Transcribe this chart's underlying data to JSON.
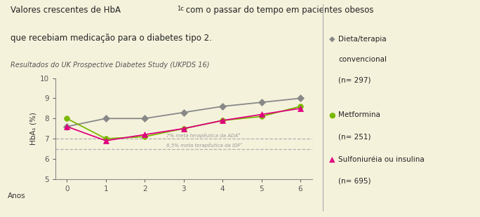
{
  "background_color": "#f5f2dc",
  "years": [
    0,
    1,
    2,
    3,
    4,
    5,
    6
  ],
  "dieta": [
    7.6,
    8.0,
    8.0,
    8.3,
    8.6,
    8.8,
    9.0
  ],
  "metformina": [
    8.0,
    7.0,
    7.1,
    7.5,
    7.9,
    8.1,
    8.6
  ],
  "sulfoni": [
    7.6,
    6.9,
    7.2,
    7.5,
    7.9,
    8.2,
    8.5
  ],
  "dieta_color": "#888888",
  "metformina_color": "#7ab800",
  "sulfoni_color": "#e0007f",
  "ada_line": 7.0,
  "idf_line": 6.5,
  "ada_label": "7% meta terapêutica da ADA⁶",
  "idf_label": "6,5% meta terapêutica da IDF⁷",
  "legend_dieta_line1": "Dieta/terapia",
  "legend_dieta_line2": "convencional",
  "legend_dieta_line3": "(n= 297)",
  "legend_metformina_line1": "Metformina",
  "legend_metformina_line2": "(n= 251)",
  "legend_sulfoni_line1": "Sulfoniuréia ou insulina",
  "legend_sulfoni_line2": "(n= 695)",
  "ylim": [
    5,
    10
  ],
  "xlim": [
    -0.3,
    6.3
  ],
  "yticks": [
    5,
    6,
    7,
    8,
    9,
    10
  ],
  "title_part1": "Valores crescentes de HbA",
  "title_sub": "1c",
  "title_part2": " com o passar do tempo em pacientes obesos",
  "title_line2": "que recebiam medicação para o diabetes tipo 2.",
  "subtitle": "Resultados do UK Prospective Diabetes Study (UKPDS 16)",
  "ylabel": "HbA₁⁣ (%)",
  "xlabel": "Anos"
}
